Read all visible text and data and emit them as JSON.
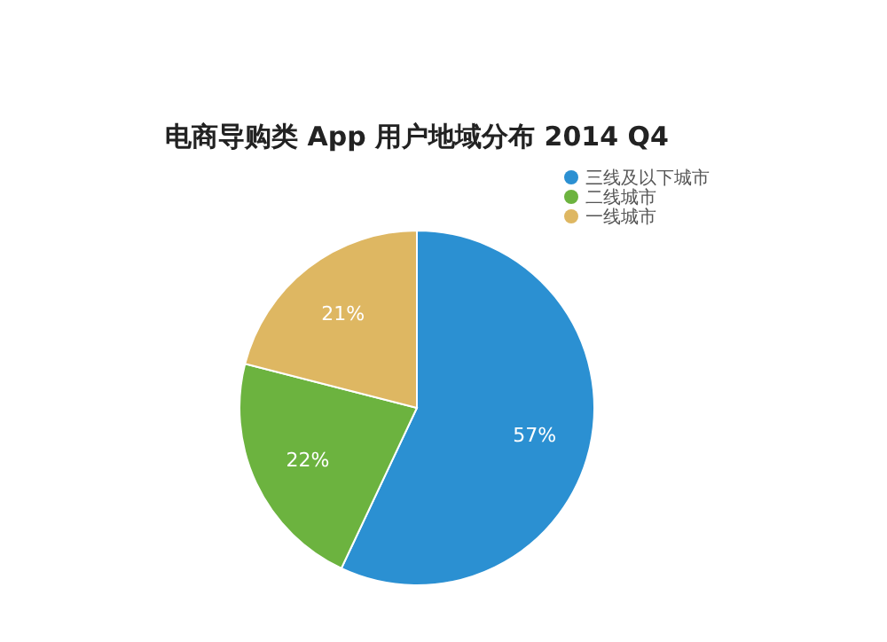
{
  "chart_data": {
    "type": "pie",
    "title": "电商导购类 App 用户地域分布   2014 Q4",
    "categories": [
      "三线及以下城市",
      "二线城市",
      "一线城市"
    ],
    "values": [
      57,
      22,
      21
    ],
    "colors": [
      "#2b90d2",
      "#6cb33f",
      "#deb762"
    ],
    "value_labels": [
      "57%",
      "22%",
      "21%"
    ],
    "legend": "top right"
  }
}
